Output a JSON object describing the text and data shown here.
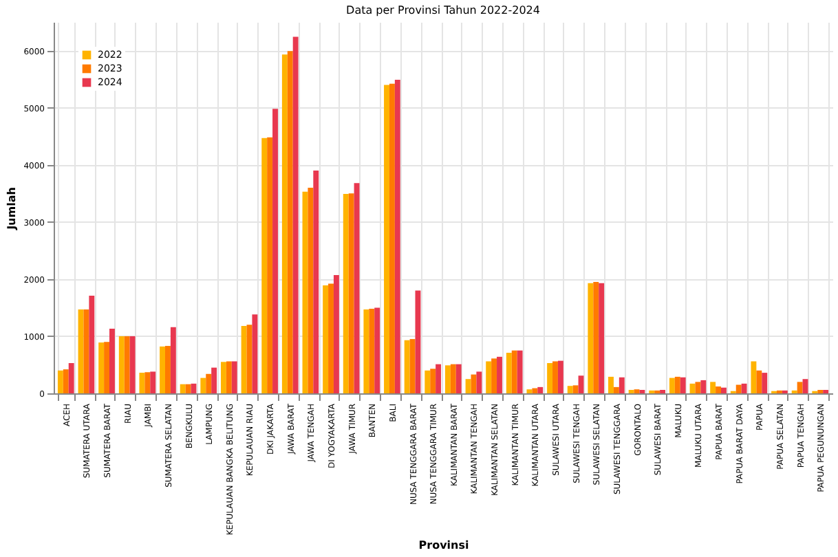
{
  "chart_data": {
    "type": "bar",
    "title": "Data per Provinsi Tahun 2022-2024",
    "xlabel": "Provinsi",
    "ylabel": "Jumlah",
    "categories": [
      "ACEH",
      "SUMATERA UTARA",
      "SUMATERA BARAT",
      "RIAU",
      "JAMBI",
      "SUMATERA SELATAN",
      "BENGKULU",
      "LAMPUNG",
      "KEPULAUAN BANGKA BELITUNG",
      "KEPULAUAN RIAU",
      "DKI JAKARTA",
      "JAWA BARAT",
      "JAWA TENGAH",
      "DI YOGYAKARTA",
      "JAWA TIMUR",
      "BANTEN",
      "BALI",
      "NUSA TENGGARA BARAT",
      "NUSA TENGGARA TIMUR",
      "KALIMANTAN BARAT",
      "KALIMANTAN TENGAH",
      "KALIMANTAN SELATAN",
      "KALIMANTAN TIMUR",
      "KALIMANTAN UTARA",
      "SULAWESI UTARA",
      "SULAWESI TENGAH",
      "SULAWESI SELATAN",
      "SULAWESI TENGGARA",
      "GORONTALO",
      "SULAWESI BARAT",
      "MALUKU",
      "MALUKU UTARA",
      "PAPUA BARAT",
      "PAPUA BARAT DAYA",
      "PAPUA",
      "PAPUA SELATAN",
      "PAPUA TENGAH",
      "PAPUA PEGUNUNGAN"
    ],
    "series": [
      {
        "name": "2022",
        "color": "#ffb300",
        "values": [
          400,
          1470,
          890,
          1000,
          360,
          820,
          160,
          270,
          550,
          1180,
          4470,
          5930,
          3530,
          1890,
          3490,
          1470,
          5400,
          930,
          400,
          490,
          250,
          560,
          710,
          70,
          530,
          130,
          1930,
          290,
          60,
          50,
          270,
          170,
          200,
          40,
          560,
          40,
          50,
          40
        ]
      },
      {
        "name": "2023",
        "color": "#ff7a00",
        "values": [
          420,
          1470,
          900,
          1000,
          370,
          830,
          160,
          340,
          560,
          1200,
          4480,
          5990,
          3600,
          1920,
          3500,
          1480,
          5420,
          950,
          430,
          510,
          330,
          610,
          750,
          90,
          560,
          140,
          1950,
          110,
          70,
          50,
          290,
          200,
          120,
          150,
          400,
          50,
          200,
          60
        ]
      },
      {
        "name": "2024",
        "color": "#e8384f",
        "values": [
          530,
          1710,
          1130,
          1000,
          380,
          1160,
          170,
          450,
          560,
          1380,
          4980,
          6240,
          3900,
          2070,
          3680,
          1500,
          5490,
          1800,
          510,
          510,
          380,
          640,
          750,
          110,
          570,
          310,
          1930,
          280,
          60,
          60,
          280,
          230,
          100,
          170,
          360,
          50,
          250,
          60
        ]
      }
    ],
    "ylim": [
      0,
      6500
    ],
    "yticks": [
      0,
      1000,
      2000,
      3000,
      4000,
      5000,
      6000
    ],
    "grid": true,
    "legend": "top left"
  }
}
